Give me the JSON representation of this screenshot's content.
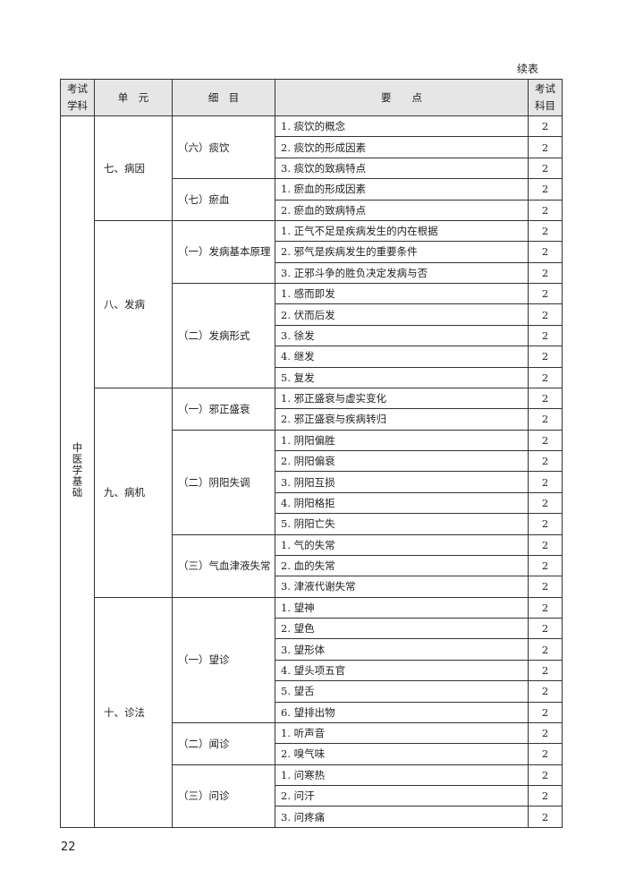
{
  "header": {
    "note": "续表",
    "columns": [
      [
        "考试",
        "学科"
      ],
      [
        "单　元"
      ],
      [
        "细　目"
      ],
      [
        "要　　点"
      ],
      [
        "考试",
        "科目"
      ]
    ]
  },
  "subject": "中医学基础",
  "units": [
    {
      "name": "七、病因",
      "items": [
        {
          "name": "（六）痰饮",
          "points": [
            {
              "text": "1. 痰饮的概念",
              "score": 2
            },
            {
              "text": "2. 痰饮的形成因素",
              "score": 2
            },
            {
              "text": "3. 痰饮的致病特点",
              "score": 2
            }
          ]
        },
        {
          "name": "（七）瘀血",
          "points": [
            {
              "text": "1. 瘀血的形成因素",
              "score": 2
            },
            {
              "text": "2. 瘀血的致病特点",
              "score": 2
            }
          ]
        }
      ]
    },
    {
      "name": "八、发病",
      "items": [
        {
          "name": "（一）发病基本原理",
          "points": [
            {
              "text": "1. 正气不足是疾病发生的内在根据",
              "score": 2
            },
            {
              "text": "2. 邪气是疾病发生的重要条件",
              "score": 2
            },
            {
              "text": "3. 正邪斗争的胜负决定发病与否",
              "score": 2
            }
          ]
        },
        {
          "name": "（二）发病形式",
          "points": [
            {
              "text": "1. 感而即发",
              "score": 2
            },
            {
              "text": "2. 伏而后发",
              "score": 2
            },
            {
              "text": "3. 徐发",
              "score": 2
            },
            {
              "text": "4. 继发",
              "score": 2
            },
            {
              "text": "5. 复发",
              "score": 2
            }
          ]
        }
      ]
    },
    {
      "name": "九、病机",
      "items": [
        {
          "name": "（一）邪正盛衰",
          "points": [
            {
              "text": "1. 邪正盛衰与虚实变化",
              "score": 2
            },
            {
              "text": "2. 邪正盛衰与疾病转归",
              "score": 2
            }
          ]
        },
        {
          "name": "（二）阴阳失调",
          "points": [
            {
              "text": "1. 阴阳偏胜",
              "score": 2
            },
            {
              "text": "2. 阴阳偏衰",
              "score": 2
            },
            {
              "text": "3. 阴阳互损",
              "score": 2
            },
            {
              "text": "4. 阴阳格拒",
              "score": 2
            },
            {
              "text": "5. 阴阳亡失",
              "score": 2
            }
          ]
        },
        {
          "name": "（三）气血津液失常",
          "points": [
            {
              "text": "1. 气的失常",
              "score": 2
            },
            {
              "text": "2. 血的失常",
              "score": 2
            },
            {
              "text": "3. 津液代谢失常",
              "score": 2
            }
          ]
        }
      ]
    },
    {
      "name": "十、诊法",
      "items": [
        {
          "name": "（一）望诊",
          "points": [
            {
              "text": "1. 望神",
              "score": 2
            },
            {
              "text": "2. 望色",
              "score": 2
            },
            {
              "text": "3. 望形体",
              "score": 2
            },
            {
              "text": "4. 望头项五官",
              "score": 2
            },
            {
              "text": "5. 望舌",
              "score": 2
            },
            {
              "text": "6. 望排出物",
              "score": 2
            }
          ]
        },
        {
          "name": "（二）闻诊",
          "points": [
            {
              "text": "1. 听声音",
              "score": 2
            },
            {
              "text": "2. 嗅气味",
              "score": 2
            }
          ]
        },
        {
          "name": "（三）问诊",
          "points": [
            {
              "text": "1. 问寒热",
              "score": 2
            },
            {
              "text": "2. 问汗",
              "score": 2
            },
            {
              "text": "3. 问疼痛",
              "score": 2
            }
          ]
        }
      ]
    }
  ],
  "page_number": "22"
}
